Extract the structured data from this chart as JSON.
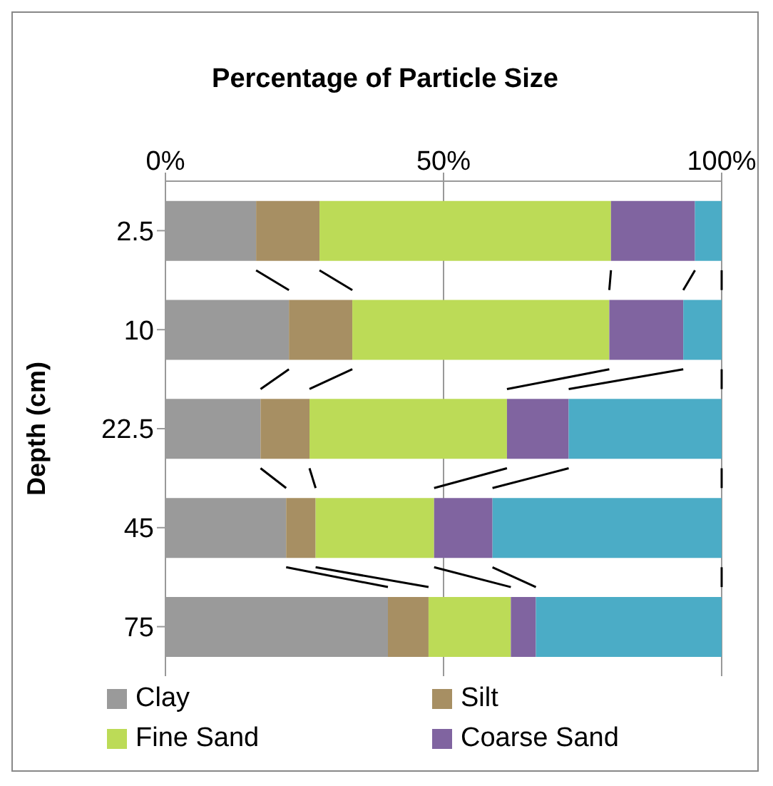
{
  "chart_data": {
    "type": "bar",
    "orientation": "horizontal",
    "stacked": true,
    "title": "Percentage of Particle Size",
    "ylabel": "Depth (cm)",
    "categories": [
      "2.5",
      "10",
      "22.5",
      "45",
      "75"
    ],
    "series": [
      {
        "name": "Clay",
        "color": "#9a9a9a",
        "values": [
          16.3,
          22.2,
          17.1,
          21.7,
          40
        ]
      },
      {
        "name": "Silt",
        "color": "#a78f63",
        "values": [
          11.4,
          11.4,
          8.8,
          5.3,
          7.3
        ]
      },
      {
        "name": "Fine Sand",
        "color": "#bcdb57",
        "values": [
          52.4,
          46.2,
          35.5,
          21.3,
          14.8
        ]
      },
      {
        "name": "Coarse Sand",
        "color": "#8064a0",
        "values": [
          15.1,
          13.3,
          11.1,
          10.5,
          4.5
        ]
      },
      {
        "color": "#4bacc6",
        "values": [
          4.8,
          6.9,
          27.5,
          41.2,
          33.4
        ]
      }
    ],
    "xlim": [
      0,
      100
    ],
    "xticks": [
      {
        "value": 0,
        "label": "0%"
      },
      {
        "value": 50,
        "label": "50%"
      },
      {
        "value": 100,
        "label": "100%"
      }
    ],
    "grid": "x",
    "legend": "bottom"
  }
}
